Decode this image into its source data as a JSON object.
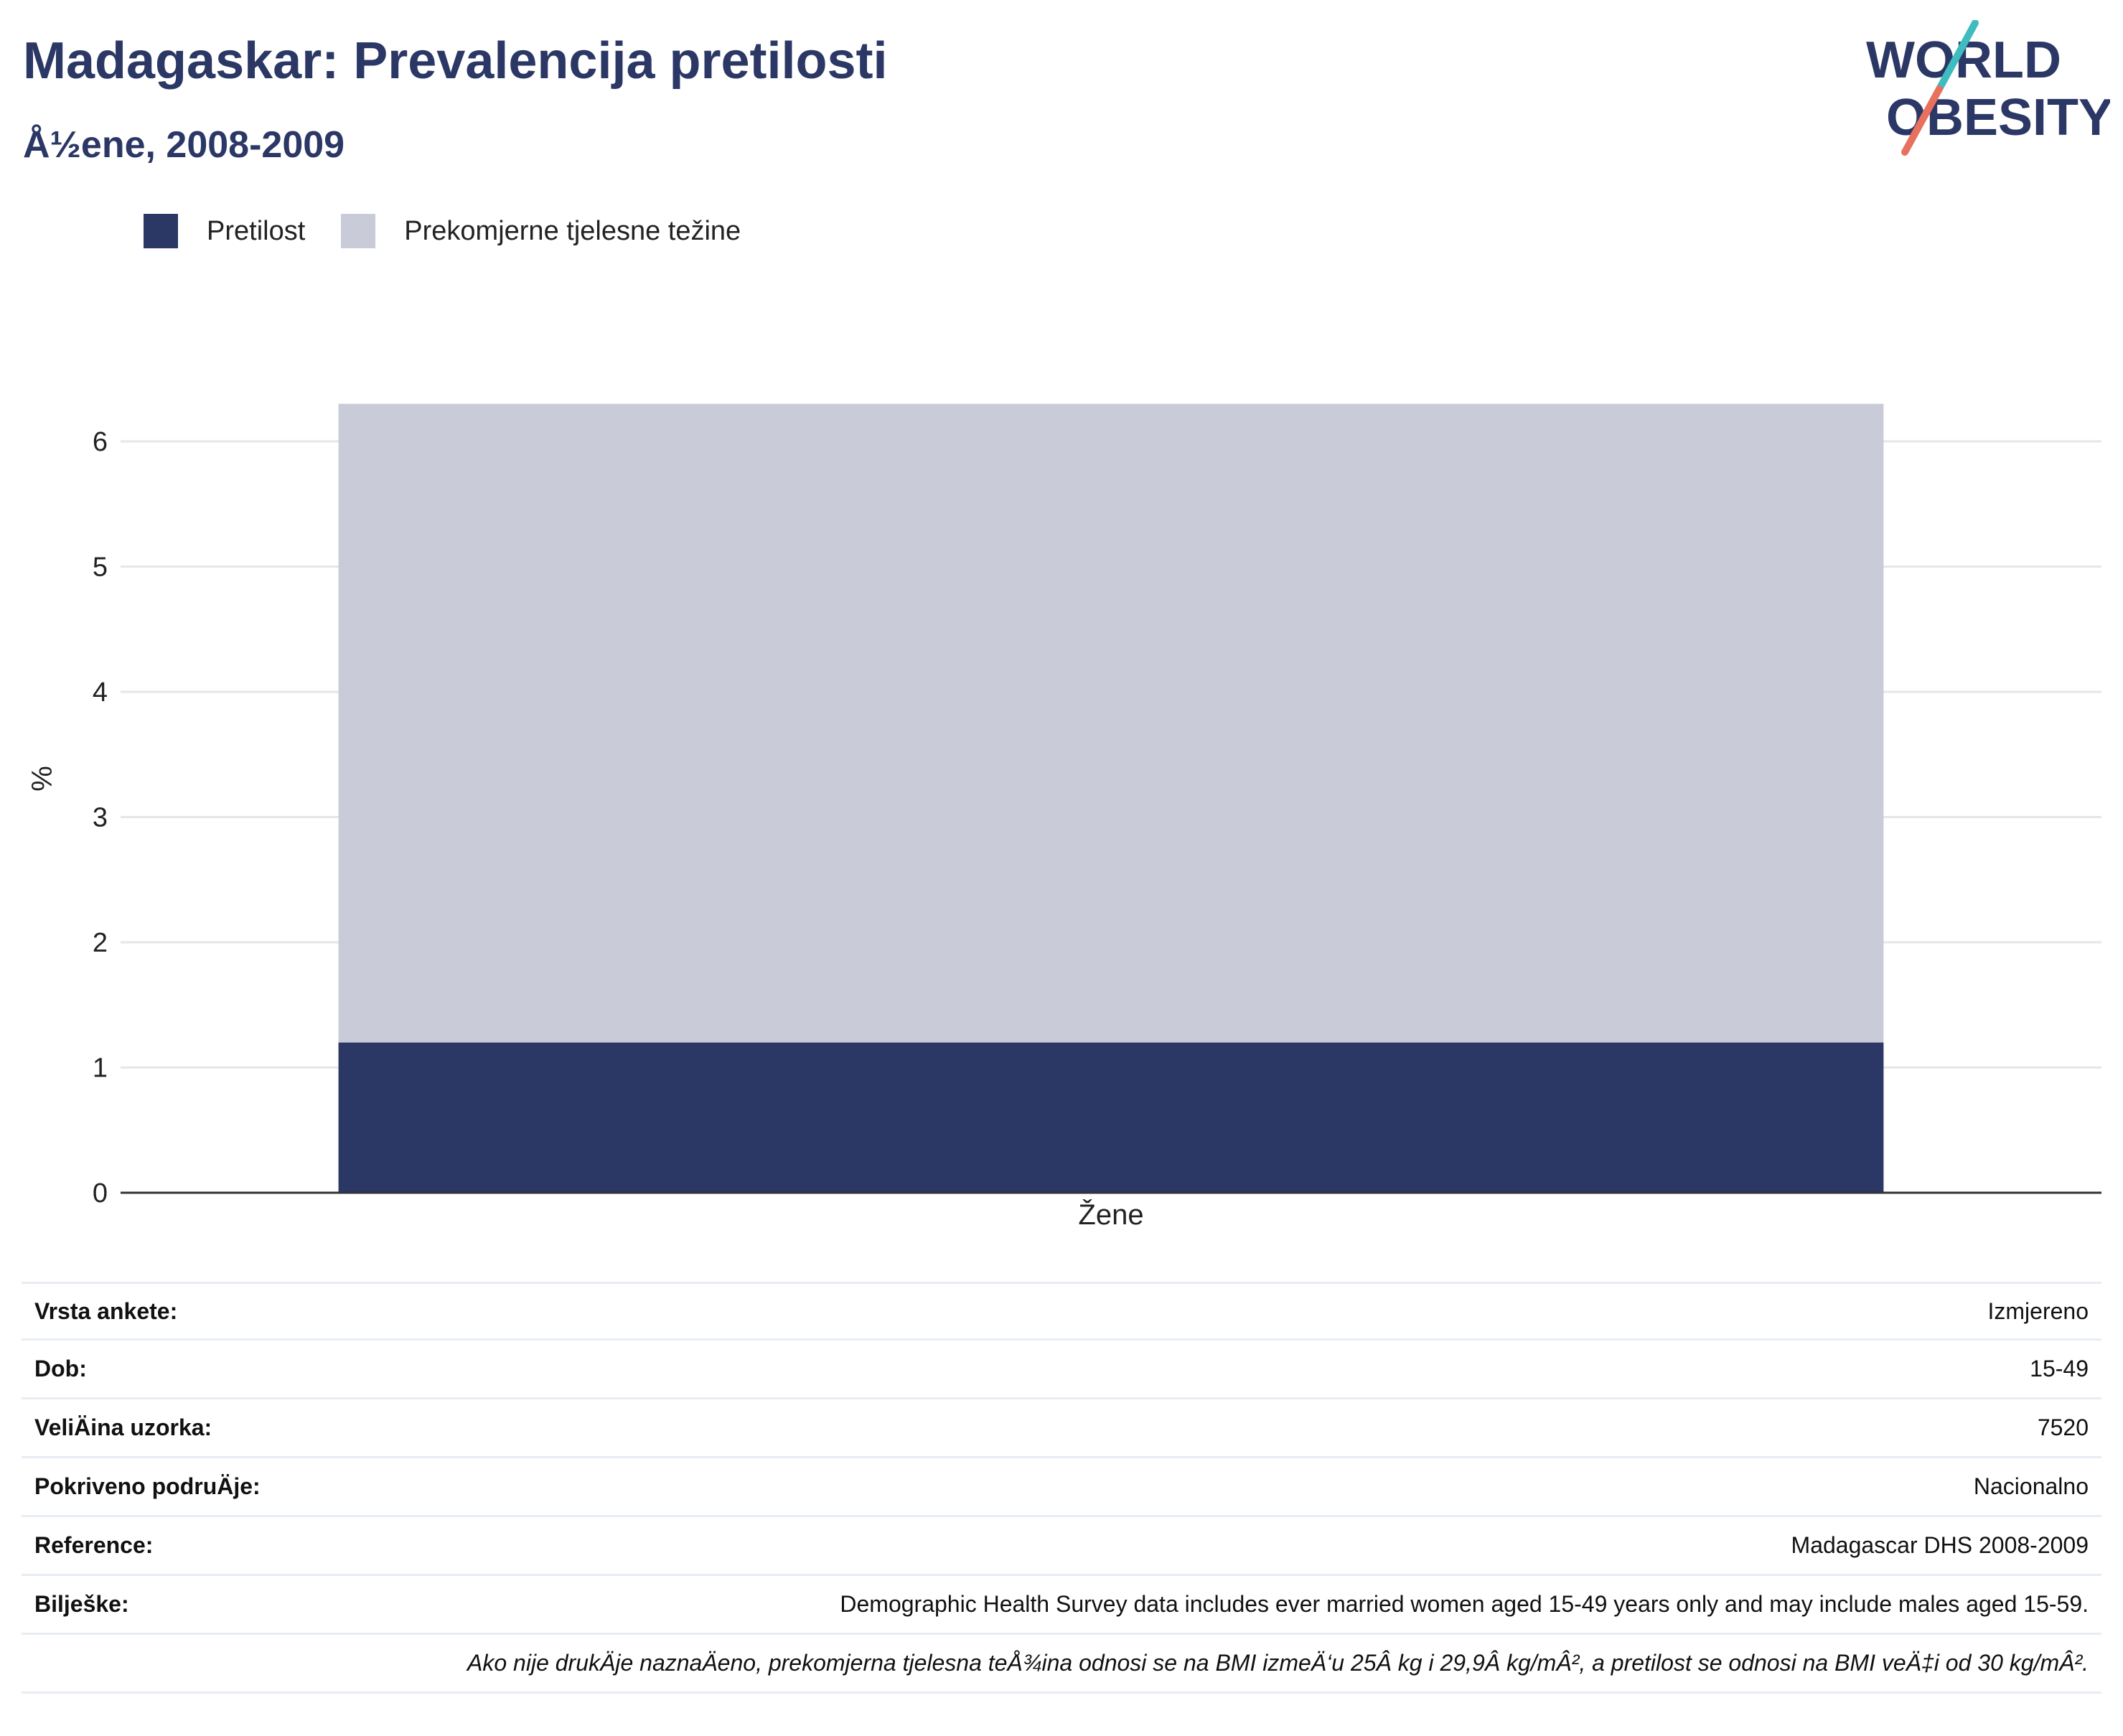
{
  "header": {
    "title": "Madagaskar: Prevalencija pretilosti",
    "subtitle": "Å½ene, 2008-2009"
  },
  "logo": {
    "line1": "WORLD",
    "line2": "OBESITY",
    "colors": {
      "text": "#2b3765",
      "slash_top": "#3fbcc0",
      "slash_bottom": "#e8705f"
    }
  },
  "legend": {
    "items": [
      {
        "label": "Pretilost",
        "color": "#2b3765"
      },
      {
        "label": "Prekomjerne tjelesne težine",
        "color": "#c9ccd8"
      }
    ]
  },
  "chart_data": {
    "type": "bar",
    "stacked": true,
    "categories": [
      "Žene"
    ],
    "series": [
      {
        "name": "Pretilost",
        "values": [
          1.2
        ],
        "color": "#2b3765"
      },
      {
        "name": "Prekomjerne tjelesne težine",
        "values": [
          5.1
        ],
        "color": "#c9ccd8"
      }
    ],
    "title": "Madagaskar: Prevalencija pretilosti",
    "subtitle": "Å½ene, 2008-2009",
    "xlabel": "",
    "ylabel": "%",
    "ylim": [
      0,
      6.5
    ],
    "yticks": [
      0,
      1,
      2,
      3,
      4,
      5,
      6
    ],
    "grid": true,
    "legend_position": "top-left"
  },
  "info_table": {
    "rows": [
      {
        "label": "Vrsta ankete:",
        "value": "Izmjereno"
      },
      {
        "label": "Dob:",
        "value": "15-49"
      },
      {
        "label": "VeliÄ\u001fina uzorka:",
        "value": "7520"
      },
      {
        "label": "Pokriveno podruÄ\u001fje:",
        "value": "Nacionalno"
      },
      {
        "label": "Reference:",
        "value": "Madagascar DHS 2008-2009"
      },
      {
        "label": "Bilješke:",
        "value": "Demographic Health Survey data includes ever married women aged 15-49 years only and may include males aged 15-59."
      }
    ],
    "footnote": "Ako nije drukÄ\u001fje naznaÄ\u001feno, prekomjerna tjelesna teÅ¾ina odnosi se na BMI izmeÄ‘u 25Â kg i 29,9Â kg/mÂ², a pretilost se odnosi na BMI veÄ‡i od 30 kg/mÂ²."
  }
}
